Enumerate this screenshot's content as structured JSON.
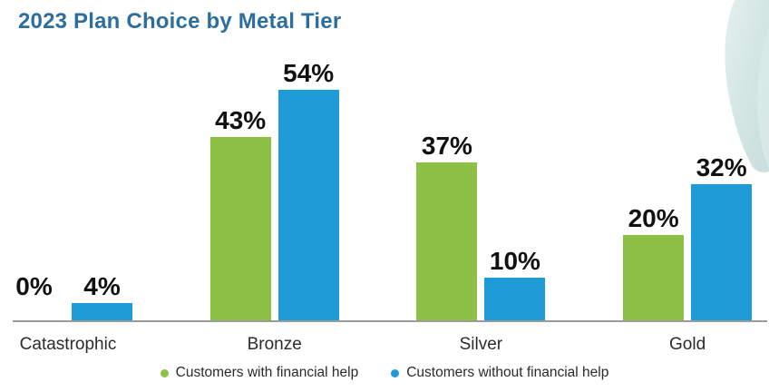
{
  "page": {
    "background": "#ffffff"
  },
  "header": {
    "title": "2023 Plan Choice by Metal Tier",
    "title_color": "#2D6E9E"
  },
  "chart_data": {
    "type": "bar",
    "title": "2023 Plan Choice by Metal Tier",
    "categories": [
      "Catastrophic",
      "Bronze",
      "Silver",
      "Gold"
    ],
    "series": [
      {
        "name": "Customers with financial help",
        "color": "#8DC044",
        "values": [
          0,
          43,
          37,
          20
        ],
        "labels": [
          "0%",
          "43%",
          "37%",
          "20%"
        ]
      },
      {
        "name": "Customers without financial help",
        "color": "#1F9CD7",
        "values": [
          4,
          54,
          10,
          32
        ],
        "labels": [
          "4%",
          "54%",
          "10%",
          "32%"
        ]
      }
    ],
    "unit": "%",
    "ylim": [
      0,
      60
    ],
    "grid": false,
    "y_axis_visible": false,
    "x_axis_line_visible": true,
    "legend_position": "bottom",
    "axis_color": "#9B9B9B",
    "data_label_color": "#111111",
    "category_label_color": "#2B2B2B"
  },
  "legend": {
    "text_color": "#2B2B2B",
    "items": [
      {
        "label": "Customers with financial help",
        "color": "#8DC044"
      },
      {
        "label": "Customers without financial help",
        "color": "#1F9CD7"
      }
    ]
  },
  "decoration": {
    "corner_image": "pale-teal-photo-fragment",
    "corner_color_light": "#e3f0ee",
    "corner_color_dark": "#c9dfdd"
  }
}
